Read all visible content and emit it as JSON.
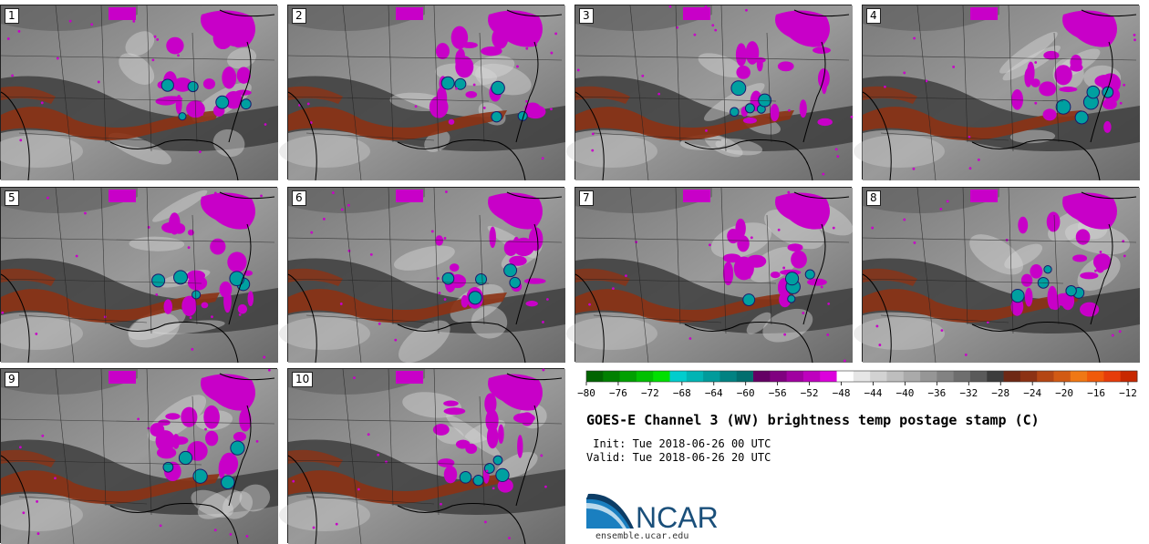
{
  "panels": [
    {
      "label": "1"
    },
    {
      "label": "2"
    },
    {
      "label": "3"
    },
    {
      "label": "4"
    },
    {
      "label": "5"
    },
    {
      "label": "6"
    },
    {
      "label": "7"
    },
    {
      "label": "8"
    },
    {
      "label": "9"
    },
    {
      "label": "10"
    }
  ],
  "colorbar": {
    "colors": [
      "#006400",
      "#008000",
      "#00a000",
      "#00c000",
      "#00e000",
      "#00cdcd",
      "#00b4b4",
      "#009b9b",
      "#008282",
      "#006e6e",
      "#640064",
      "#800080",
      "#a000a0",
      "#be00be",
      "#dc00dc",
      "#ffffff",
      "#e6e6e6",
      "#d2d2d2",
      "#bebebe",
      "#aaaaaa",
      "#969696",
      "#828282",
      "#6e6e6e",
      "#5a5a5a",
      "#3c3c3c",
      "#6e2814",
      "#8c3214",
      "#b44614",
      "#d25a14",
      "#f07814",
      "#f05a0a",
      "#e63c0a",
      "#c82800"
    ],
    "ticks": [
      "−80",
      "−76",
      "−72",
      "−68",
      "−64",
      "−60",
      "−56",
      "−52",
      "−48",
      "−44",
      "−40",
      "−36",
      "−32",
      "−28",
      "−24",
      "−20",
      "−16",
      "−12"
    ]
  },
  "title": "GOES-E Channel 3 (WV) brightness temp postage stamp (C)",
  "init": " Init: Tue 2018-06-26 00 UTC",
  "valid": "Valid: Tue 2018-06-26 20 UTC",
  "logo": {
    "text": "NCAR",
    "color": "#1a4f7a",
    "accent": "#1a7fc0"
  },
  "site": "ensemble.ucar.edu"
}
